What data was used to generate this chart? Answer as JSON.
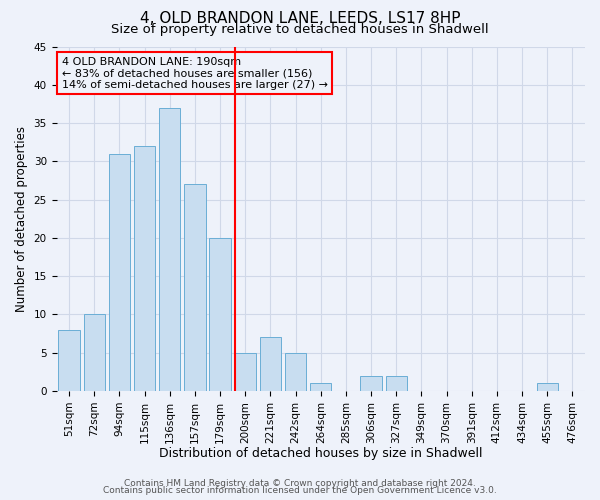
{
  "title": "4, OLD BRANDON LANE, LEEDS, LS17 8HP",
  "subtitle": "Size of property relative to detached houses in Shadwell",
  "xlabel": "Distribution of detached houses by size in Shadwell",
  "ylabel": "Number of detached properties",
  "categories": [
    "51sqm",
    "72sqm",
    "94sqm",
    "115sqm",
    "136sqm",
    "157sqm",
    "179sqm",
    "200sqm",
    "221sqm",
    "242sqm",
    "264sqm",
    "285sqm",
    "306sqm",
    "327sqm",
    "349sqm",
    "370sqm",
    "391sqm",
    "412sqm",
    "434sqm",
    "455sqm",
    "476sqm"
  ],
  "values": [
    8,
    10,
    31,
    32,
    37,
    27,
    20,
    5,
    7,
    5,
    1,
    0,
    2,
    2,
    0,
    0,
    0,
    0,
    0,
    1,
    0
  ],
  "bar_color": "#c8ddf0",
  "bar_edge_color": "#6aaed6",
  "vline_index": 7,
  "vline_color": "red",
  "ylim": [
    0,
    45
  ],
  "yticks": [
    0,
    5,
    10,
    15,
    20,
    25,
    30,
    35,
    40,
    45
  ],
  "annotation_line1": "4 OLD BRANDON LANE: 190sqm",
  "annotation_line2": "← 83% of detached houses are smaller (156)",
  "annotation_line3": "14% of semi-detached houses are larger (27) →",
  "annotation_box_color": "red",
  "footer1": "Contains HM Land Registry data © Crown copyright and database right 2024.",
  "footer2": "Contains public sector information licensed under the Open Government Licence v3.0.",
  "background_color": "#eef2fa",
  "grid_color": "#d0d8e8",
  "title_fontsize": 11,
  "subtitle_fontsize": 9.5,
  "xlabel_fontsize": 9,
  "ylabel_fontsize": 8.5,
  "tick_fontsize": 7.5,
  "annotation_fontsize": 8,
  "footer_fontsize": 6.5
}
